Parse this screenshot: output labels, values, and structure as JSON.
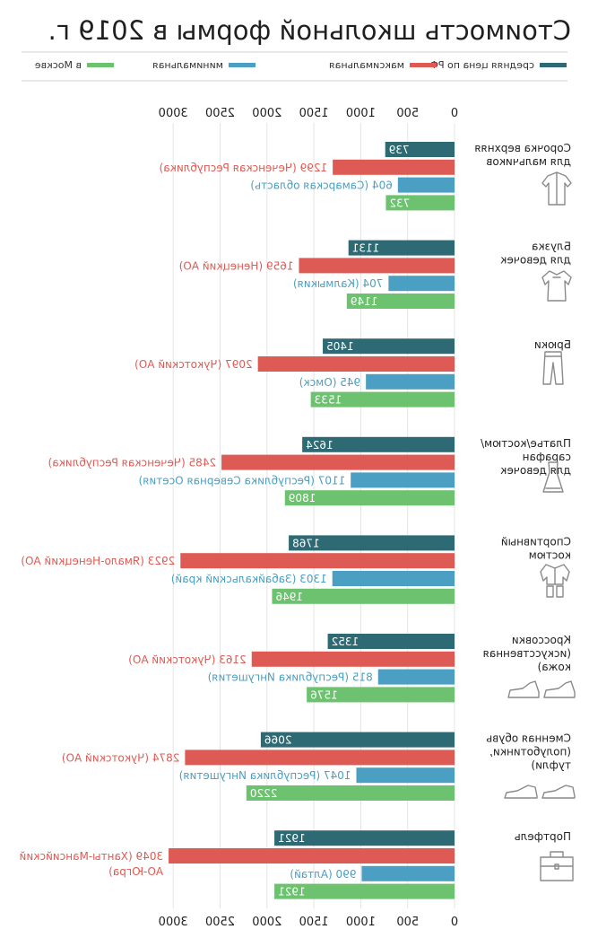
{
  "chart_data": {
    "type": "bar",
    "orientation": "horizontal",
    "title": "Стоимость школьной формы в 2019 г.",
    "xlim": [
      0,
      3000
    ],
    "xticks": [
      "0",
      "500",
      "1000",
      "1500",
      "2000",
      "2500",
      "3000"
    ],
    "grid": true,
    "legend_position": "top",
    "series": [
      {
        "name": "средняя цена по РФ",
        "color": "#2e6a73"
      },
      {
        "name": "максимальная",
        "color": "#dd5b54"
      },
      {
        "name": "минимальная",
        "color": "#4a9fc2"
      },
      {
        "name": "в Москве",
        "color": "#6cc26f"
      }
    ],
    "categories": [
      {
        "label": [
          "Сорочка верхняя",
          "для мальчиков"
        ],
        "icon": "shirt-icon",
        "values": [
          739,
          1299,
          604,
          732
        ],
        "labels": [
          "739",
          "1299 (Чеченская Республика)",
          "604 (Самарская область)",
          "732"
        ]
      },
      {
        "label": [
          "Блузка",
          "для девочек"
        ],
        "icon": "blouse-icon",
        "values": [
          1131,
          1659,
          704,
          1149
        ],
        "labels": [
          "1131",
          "1659 (Ненецкий АО)",
          "704 (Калмыкия)",
          "1149"
        ]
      },
      {
        "label": [
          "Брюки"
        ],
        "icon": "trousers-icon",
        "values": [
          1405,
          2097,
          945,
          1533
        ],
        "labels": [
          "1405",
          "2097 (Чукотский АО)",
          "945 (Омск)",
          "1533"
        ]
      },
      {
        "label": [
          "Платье/костюм/",
          "сарафан",
          "для девочек"
        ],
        "icon": "dress-icon",
        "values": [
          1624,
          2485,
          1107,
          1809
        ],
        "labels": [
          "1624",
          "2485 (Чеченская Республика)",
          "1107 (Республика Северная Осетия)",
          "1809"
        ]
      },
      {
        "label": [
          "Спортивный",
          "костюм"
        ],
        "icon": "tracksuit-icon",
        "values": [
          1768,
          2923,
          1303,
          1946
        ],
        "labels": [
          "1768",
          "2923 (Ямало-Ненецкий АО)",
          "1303 (Забайкальский край)",
          "1946"
        ]
      },
      {
        "label": [
          "Кроссовки",
          "(искусственная",
          "кожа)"
        ],
        "icon": "sneakers-icon",
        "values": [
          1352,
          2163,
          815,
          1576
        ],
        "labels": [
          "1352",
          "2163 (Чукотский АО)",
          "815 (Республика Ингушетия)",
          "1576"
        ]
      },
      {
        "label": [
          "Сменная обувь",
          "(полуботинки,",
          "туфли)"
        ],
        "icon": "shoes-icon",
        "values": [
          2066,
          2874,
          1047,
          2220
        ],
        "labels": [
          "2066",
          "2874 (Чукотский АО)",
          "1047 (Республика Ингушетия)",
          "2220"
        ]
      },
      {
        "label": [
          "Портфель"
        ],
        "icon": "briefcase-icon",
        "values": [
          1921,
          3049,
          990,
          1921
        ],
        "labels": [
          "1921",
          "3049 (Ханты-Мансийский",
          "990 (Алтай)",
          "1921"
        ],
        "label_extra": "АО-Югра)"
      }
    ]
  }
}
